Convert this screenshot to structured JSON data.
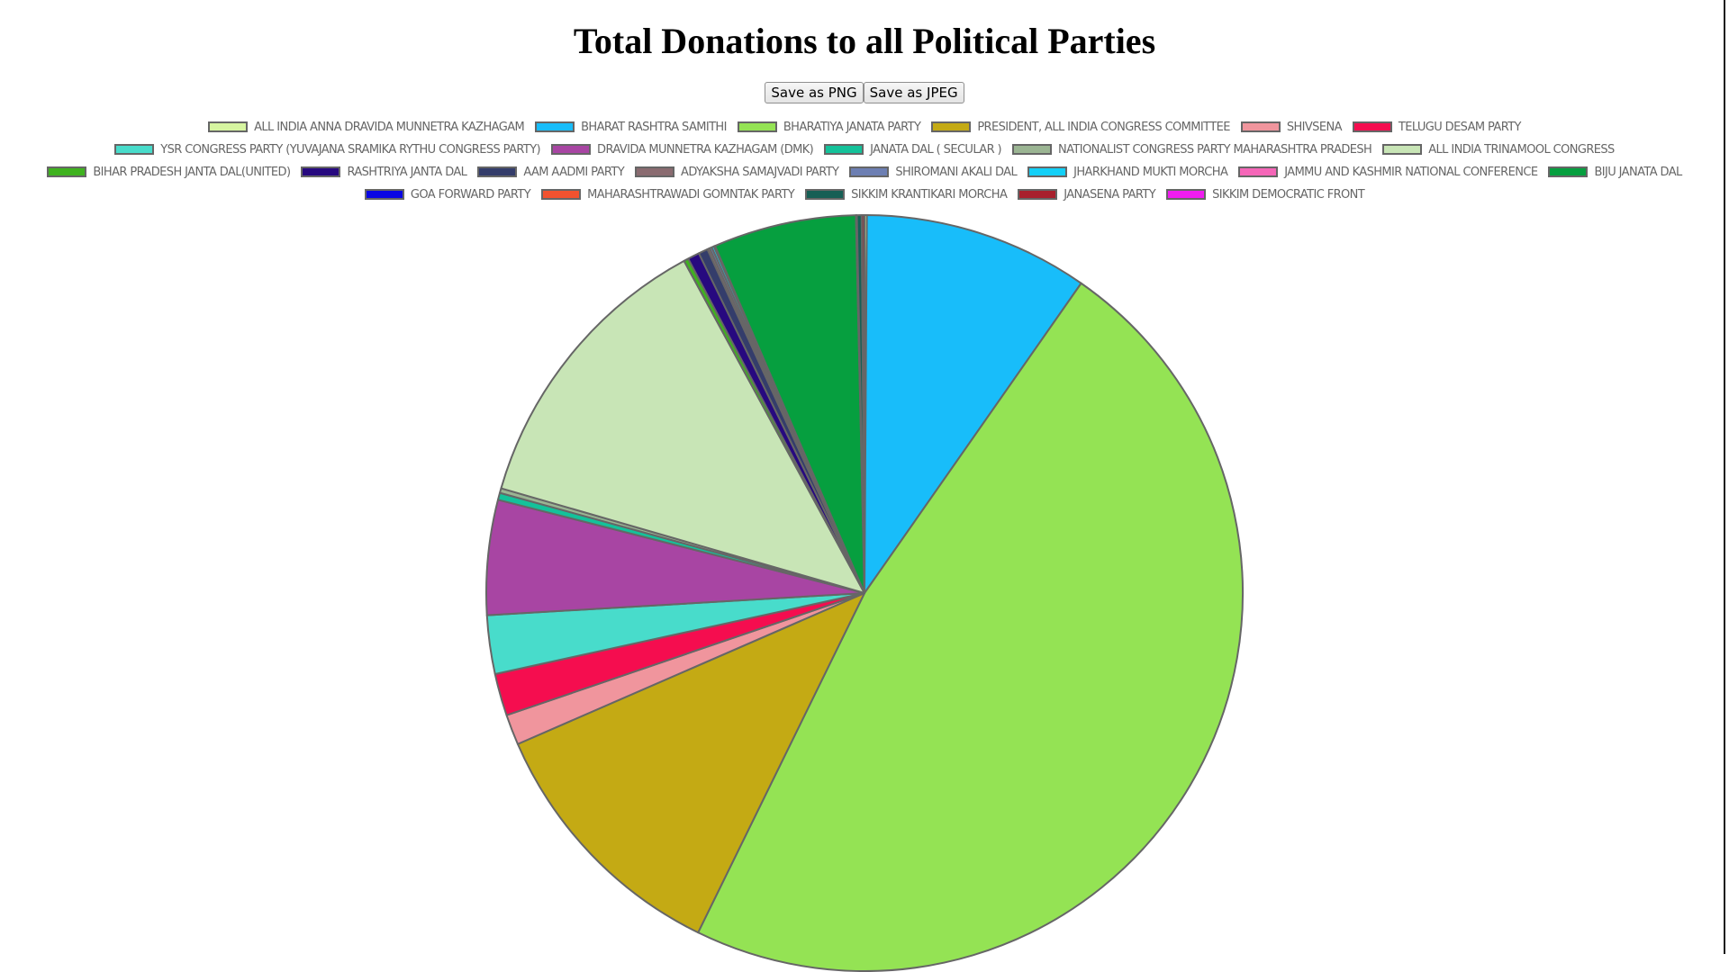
{
  "chart_data": {
    "type": "pie",
    "title": "Total Donations to all Political Parties",
    "series": [
      {
        "name": "ALL INDIA ANNA DRAVIDA MUNNETRA KAZHAGAM",
        "value": 0.1,
        "color": "#d6f5a0"
      },
      {
        "name": "BHARAT RASHTRA SAMITHI",
        "value": 9.6,
        "color": "#18bdfa"
      },
      {
        "name": "BHARATIYA JANATA PARTY",
        "value": 47.5,
        "color": "#94e354"
      },
      {
        "name": "PRESIDENT, ALL INDIA CONGRESS COMMITTEE",
        "value": 11.2,
        "color": "#c4aa14"
      },
      {
        "name": "SHIVSENA",
        "value": 1.3,
        "color": "#f0959d"
      },
      {
        "name": "TELUGU DESAM PARTY",
        "value": 1.8,
        "color": "#f50d4f"
      },
      {
        "name": "YSR CONGRESS PARTY (YUVAJANA SRAMIKA RYTHU CONGRESS PARTY)",
        "value": 2.5,
        "color": "#48dccb"
      },
      {
        "name": "DRAVIDA MUNNETRA KAZHAGAM (DMK)",
        "value": 4.9,
        "color": "#a845a3"
      },
      {
        "name": "JANATA DAL ( SECULAR )",
        "value": 0.3,
        "color": "#14c29a"
      },
      {
        "name": "NATIONALIST CONGRESS PARTY MAHARASHTRA PRADESH",
        "value": 0.2,
        "color": "#9bb593"
      },
      {
        "name": "ALL INDIA TRINAMOOL CONGRESS",
        "value": 12.6,
        "color": "#c8e5b6"
      },
      {
        "name": "BIHAR PRADESH JANTA DAL(UNITED)",
        "value": 0.2,
        "color": "#3fb21f"
      },
      {
        "name": "RASHTRIYA JANTA DAL",
        "value": 0.5,
        "color": "#27097f"
      },
      {
        "name": "AAM AADMI PARTY",
        "value": 0.4,
        "color": "#343d6b"
      },
      {
        "name": "ADYAKSHA SAMAJVADI PARTY",
        "value": 0.1,
        "color": "#8a6b70"
      },
      {
        "name": "SHIROMANI AKALI DAL",
        "value": 0.1,
        "color": "#6d7fb3"
      },
      {
        "name": "JHARKHAND MUKTI MORCHA",
        "value": 0.1,
        "color": "#13d0f7"
      },
      {
        "name": "JAMMU AND KASHMIR NATIONAL CONFERENCE",
        "value": 0.05,
        "color": "#f566b8"
      },
      {
        "name": "BIJU JANATA DAL",
        "value": 6.1,
        "color": "#069f3f"
      },
      {
        "name": "GOA FORWARD PARTY",
        "value": 0.02,
        "color": "#0a07e3"
      },
      {
        "name": "MAHARASHTRAWADI GOMNTAK PARTY",
        "value": 0.02,
        "color": "#f2522f"
      },
      {
        "name": "SIKKIM KRANTIKARI MORCHA",
        "value": 0.2,
        "color": "#165f55"
      },
      {
        "name": "JANASENA PARTY",
        "value": 0.1,
        "color": "#a8202d"
      },
      {
        "name": "SIKKIM DEMOCRATIC FRONT",
        "value": 0.02,
        "color": "#f01cf0"
      }
    ]
  },
  "toolbar": {
    "save_png_label": "Save as PNG",
    "save_jpeg_label": "Save as JPEG"
  },
  "colors": {
    "slice_border": "#666666",
    "legend_text": "#666666",
    "title_text": "#000000"
  }
}
